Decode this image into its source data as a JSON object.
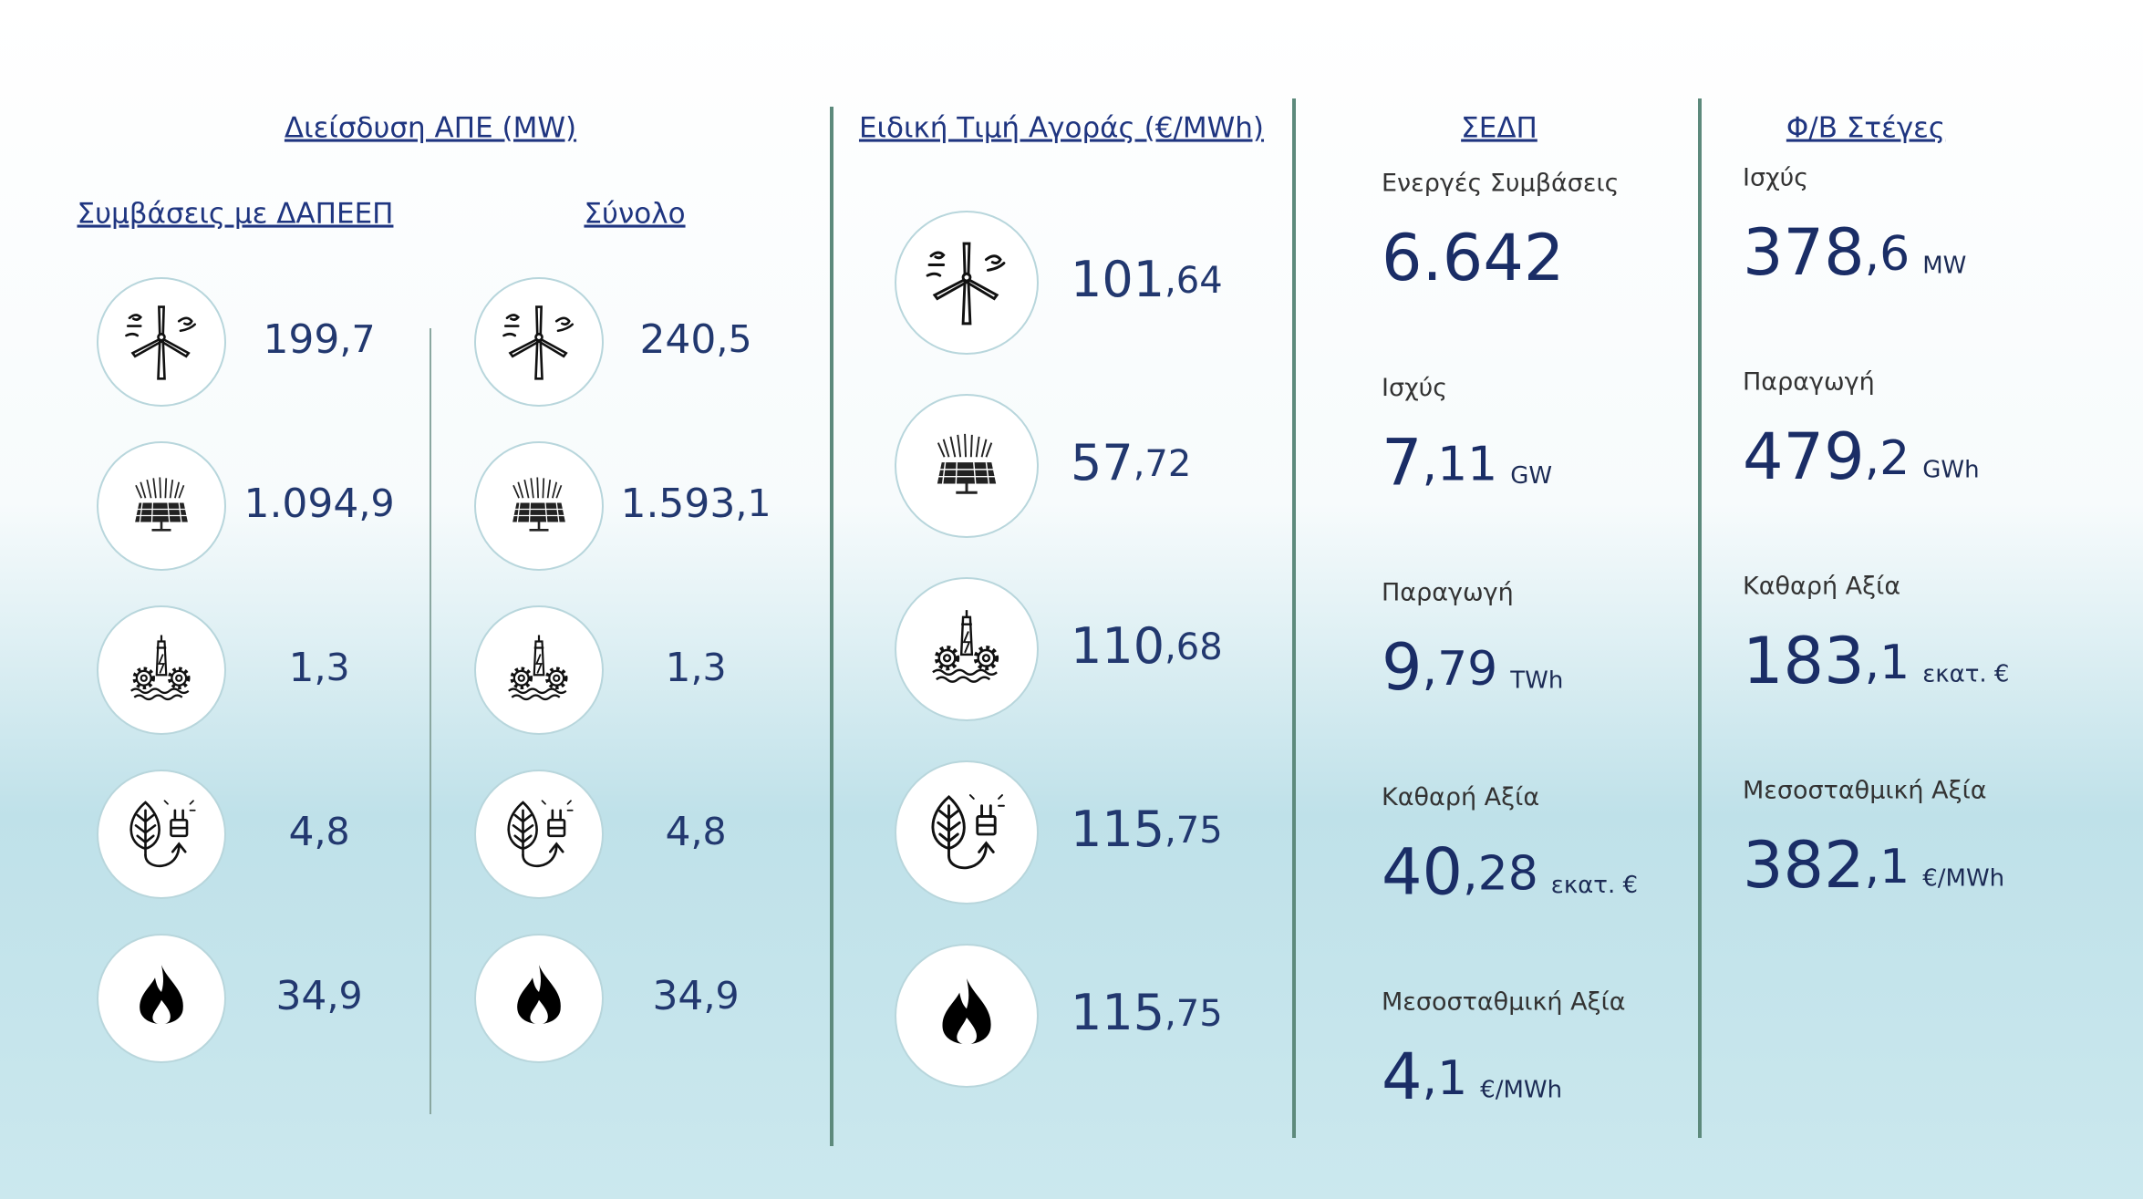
{
  "sections": [
    {
      "title": "Διείσδυση ΑΠΕ (MW)",
      "columns": [
        {
          "title": "Συμβάσεις με ΔΑΠΕΕΠ",
          "values": [
            "199,7",
            "1.094,9",
            "1,3",
            "4,8",
            "34,9"
          ]
        },
        {
          "title": "Σύνολο",
          "values": [
            "240,5",
            "1.593,1",
            "1,3",
            "4,8",
            "34,9"
          ]
        }
      ]
    },
    {
      "title": "Ειδική Τιμή Αγοράς (€/MWh)",
      "values": [
        "101,64",
        "57,72",
        "110,68",
        "115,75",
        "115,75"
      ]
    },
    {
      "title": "ΣΕΔΠ",
      "items": [
        {
          "label": "Ενεργές Συμβάσεις",
          "value": "6.642"
        },
        {
          "label": "Ισχύς",
          "value": "7,11",
          "unit": "GW"
        },
        {
          "label": "Παραγωγή",
          "value": "9,79",
          "unit": "TWh"
        },
        {
          "label": "Καθαρή Αξία",
          "value": "40,28",
          "unit": "εκατ. €"
        },
        {
          "label": "Μεσοσταθμική Αξία",
          "value": "4,1",
          "unit": "€/MWh"
        }
      ]
    },
    {
      "title": "Φ/Β Στέγες",
      "items": [
        {
          "label": "Ισχύς",
          "value": "378,6",
          "unit": "MW"
        },
        {
          "label": "Παραγωγή",
          "value": "479,2",
          "unit": "GWh"
        },
        {
          "label": "Καθαρή Αξία",
          "value": "183,1",
          "unit": "εκατ. €"
        },
        {
          "label": "Μεσοσταθμική Αξία",
          "value": "382,1",
          "unit": "€/MWh"
        }
      ]
    }
  ]
}
